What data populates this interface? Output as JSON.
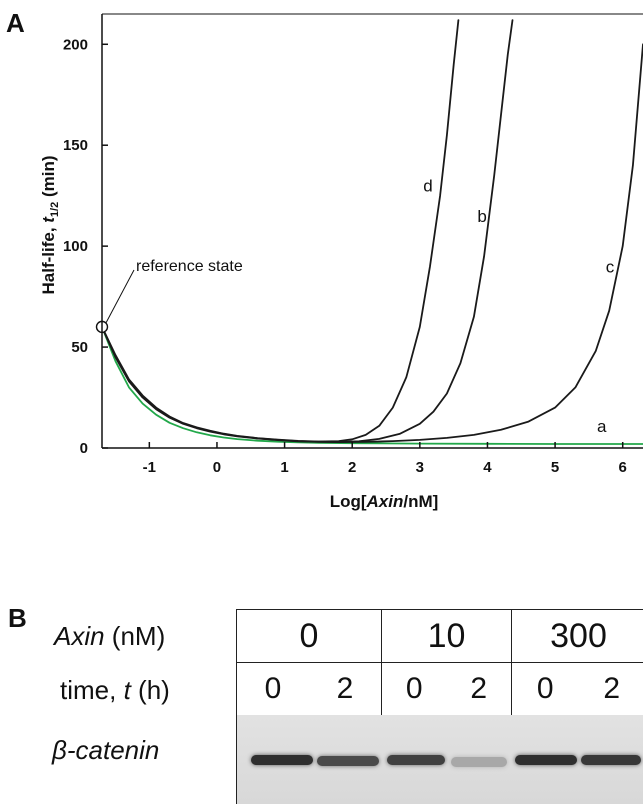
{
  "panel_a": {
    "label": "A",
    "annotation": "reference state"
  },
  "chart_data": {
    "type": "line",
    "title": "",
    "xlabel": "Log[Axin/nM]",
    "ylabel": "Half-life, t1/2 (min)",
    "xlim": [
      -1.7,
      6.3
    ],
    "ylim": [
      0,
      215
    ],
    "x_ticks": [
      -1,
      0,
      1,
      2,
      3,
      4,
      5,
      6
    ],
    "y_ticks": [
      0,
      50,
      100,
      150,
      200
    ],
    "grid": false,
    "reference_point": {
      "x": -1.7,
      "y": 60
    },
    "series": [
      {
        "name": "a",
        "color": "#22a84a",
        "x": [
          -1.7,
          -1.5,
          -1.3,
          -1.1,
          -0.9,
          -0.7,
          -0.5,
          -0.3,
          -0.1,
          0.1,
          0.3,
          0.6,
          0.9,
          1.2,
          1.5,
          2.0,
          3.0,
          4.0,
          5.0,
          6.0,
          6.3
        ],
        "y": [
          60,
          43,
          30,
          22,
          16.5,
          12.5,
          9.8,
          7.8,
          6.3,
          5.2,
          4.4,
          3.6,
          3.1,
          2.8,
          2.6,
          2.4,
          2.2,
          2.1,
          2.0,
          2.0,
          2.0
        ]
      },
      {
        "name": "c",
        "color": "#1a1a1a",
        "x": [
          -1.7,
          -1.5,
          -1.3,
          -1.1,
          -0.9,
          -0.7,
          -0.5,
          -0.3,
          -0.1,
          0.1,
          0.3,
          0.6,
          0.9,
          1.2,
          1.5,
          1.8,
          2.2,
          2.6,
          3.0,
          3.4,
          3.8,
          4.2,
          4.6,
          5.0,
          5.3,
          5.6,
          5.8,
          6.0,
          6.15,
          6.3
        ],
        "y": [
          60,
          45,
          33,
          25,
          19.2,
          15,
          12,
          9.8,
          8.1,
          6.8,
          5.8,
          4.7,
          3.9,
          3.3,
          3.0,
          2.9,
          3.0,
          3.4,
          4.0,
          5.0,
          6.5,
          9,
          13,
          20,
          30,
          48,
          68,
          100,
          140,
          200
        ]
      },
      {
        "name": "b",
        "color": "#1a1a1a",
        "x": [
          -1.7,
          -1.5,
          -1.3,
          -1.1,
          -0.9,
          -0.7,
          -0.5,
          -0.3,
          -0.1,
          0.1,
          0.3,
          0.6,
          0.9,
          1.2,
          1.5,
          1.8,
          2.1,
          2.4,
          2.7,
          3.0,
          3.2,
          3.4,
          3.6,
          3.8,
          3.95,
          4.1,
          4.2,
          4.3,
          4.37
        ],
        "y": [
          60,
          45.5,
          33.5,
          25.5,
          19.6,
          15.3,
          12.2,
          10,
          8.3,
          7,
          5.9,
          4.8,
          4,
          3.4,
          3.1,
          3.0,
          3.3,
          4.5,
          7,
          12,
          18,
          27,
          42,
          65,
          95,
          135,
          165,
          195,
          212
        ]
      },
      {
        "name": "d",
        "color": "#1a1a1a",
        "x": [
          -1.7,
          -1.5,
          -1.3,
          -1.1,
          -0.9,
          -0.7,
          -0.5,
          -0.3,
          -0.1,
          0.1,
          0.3,
          0.6,
          0.9,
          1.2,
          1.5,
          1.8,
          2.0,
          2.2,
          2.4,
          2.6,
          2.8,
          3.0,
          3.15,
          3.3,
          3.4,
          3.5,
          3.57
        ],
        "y": [
          60,
          46,
          34,
          26,
          20,
          15.6,
          12.4,
          10.2,
          8.5,
          7.1,
          6.0,
          4.9,
          4.1,
          3.5,
          3.2,
          3.4,
          4.3,
          6.5,
          11,
          20,
          35,
          60,
          90,
          125,
          155,
          190,
          212
        ]
      }
    ],
    "curve_labels": [
      {
        "text": "d",
        "x": 3.05,
        "y": 127
      },
      {
        "text": "b",
        "x": 3.85,
        "y": 112
      },
      {
        "text": "c",
        "x": 5.75,
        "y": 87
      },
      {
        "text": "a",
        "x": 5.62,
        "y": 8
      }
    ]
  },
  "panel_b": {
    "label": "B",
    "row_axin_italic": "Axin",
    "row_axin_unit": " (nM)",
    "row_time_prefix": "time, ",
    "row_time_italic": "t",
    "row_time_unit": " (h)",
    "row_protein": "β-catenin",
    "axin_values": [
      "0",
      "10",
      "300"
    ],
    "time_values": [
      "0",
      "2",
      "0",
      "2",
      "0",
      "2"
    ],
    "band_intensity": [
      0.85,
      0.7,
      0.75,
      0.18,
      0.85,
      0.8
    ]
  }
}
